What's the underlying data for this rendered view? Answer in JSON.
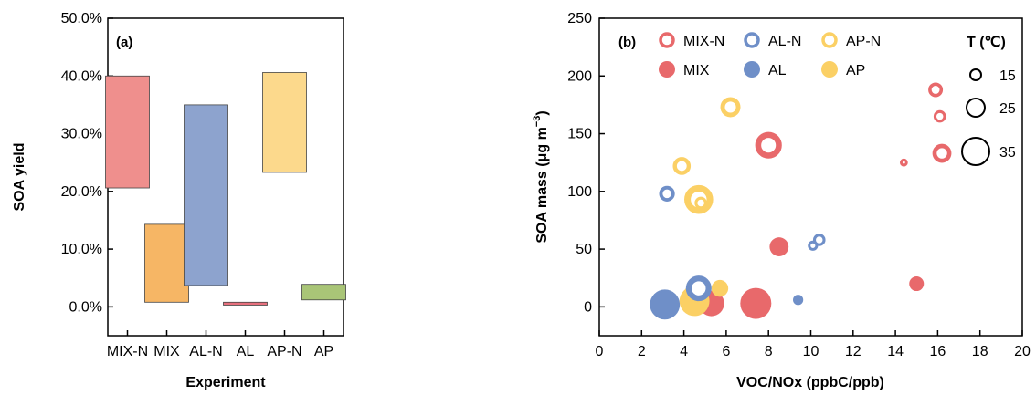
{
  "chart_data": [
    {
      "type": "bar",
      "panel_label": "(a)",
      "xlabel": "Experiment",
      "ylabel": "SOA yield",
      "ylim": [
        -0.05,
        0.5
      ],
      "yticks": [
        "0.0%",
        "10.0%",
        "20.0%",
        "30.0%",
        "40.0%",
        "50.0%"
      ],
      "categories": [
        "MIX-N",
        "MIX",
        "AL-N",
        "AL",
        "AP-N",
        "AP"
      ],
      "ranges": [
        {
          "low": 0.206,
          "high": 0.4
        },
        {
          "low": 0.008,
          "high": 0.143
        },
        {
          "low": 0.037,
          "high": 0.35
        },
        {
          "low": 0.003,
          "high": 0.008
        },
        {
          "low": 0.233,
          "high": 0.406
        },
        {
          "low": 0.012,
          "high": 0.039
        }
      ],
      "colors": [
        "#ef8f8d",
        "#f6b665",
        "#8da3ce",
        "#e7707d",
        "#fcd98c",
        "#a9c577"
      ]
    },
    {
      "type": "scatter",
      "panel_label": "(b)",
      "xlabel": "VOC/NOx (ppbC/ppb)",
      "ylabel_main": "SOA mass (μg m",
      "ylabel_sup": "−3",
      "ylabel_end": ")",
      "xlim": [
        0,
        20
      ],
      "ylim": [
        -25,
        250
      ],
      "xticks": [
        "0",
        "2",
        "4",
        "6",
        "8",
        "10",
        "12",
        "14",
        "16",
        "18",
        "20"
      ],
      "yticks": [
        "0",
        "50",
        "100",
        "150",
        "200",
        "250"
      ],
      "legend_placement": "top",
      "size_legend_title": "T (℃)",
      "size_legend": [
        "15",
        "25",
        "35"
      ],
      "series": [
        {
          "name": "MIX-N",
          "color": "#e8696b",
          "style": "ring",
          "points": [
            {
              "x": 15.9,
              "y": 188,
              "T": 20
            },
            {
              "x": 16.1,
              "y": 165,
              "T": 18
            },
            {
              "x": 16.2,
              "y": 133,
              "T": 24
            },
            {
              "x": 14.4,
              "y": 125,
              "T": 14
            },
            {
              "x": 8.0,
              "y": 140,
              "T": 31
            }
          ]
        },
        {
          "name": "MIX",
          "color": "#e8696b",
          "style": "filled",
          "points": [
            {
              "x": 15.0,
              "y": 20,
              "T": 20
            },
            {
              "x": 8.5,
              "y": 52,
              "T": 24
            },
            {
              "x": 7.4,
              "y": 3,
              "T": 35
            },
            {
              "x": 5.3,
              "y": 3,
              "T": 30
            }
          ]
        },
        {
          "name": "AL-N",
          "color": "#6f8fc8",
          "style": "ring",
          "points": [
            {
              "x": 3.2,
              "y": 98,
              "T": 21
            },
            {
              "x": 10.1,
              "y": 53,
              "T": 16
            },
            {
              "x": 10.4,
              "y": 58,
              "T": 18
            },
            {
              "x": 4.7,
              "y": 16,
              "T": 30
            }
          ]
        },
        {
          "name": "AL",
          "color": "#6f8fc8",
          "style": "filled",
          "points": [
            {
              "x": 3.1,
              "y": 2,
              "T": 34
            },
            {
              "x": 9.4,
              "y": 6,
              "T": 16
            },
            {
              "x": 4.6,
              "y": 12,
              "T": 28
            }
          ]
        },
        {
          "name": "AP-N",
          "color": "#fbd065",
          "style": "ring",
          "points": [
            {
              "x": 3.9,
              "y": 122,
              "T": 23
            },
            {
              "x": 6.2,
              "y": 173,
              "T": 25
            },
            {
              "x": 4.7,
              "y": 93,
              "T": 33
            },
            {
              "x": 4.8,
              "y": 90,
              "T": 18
            }
          ]
        },
        {
          "name": "AP",
          "color": "#fbd065",
          "style": "filled",
          "points": [
            {
              "x": 5.7,
              "y": 16,
              "T": 22
            },
            {
              "x": 4.5,
              "y": 5,
              "T": 34
            }
          ]
        }
      ]
    }
  ]
}
